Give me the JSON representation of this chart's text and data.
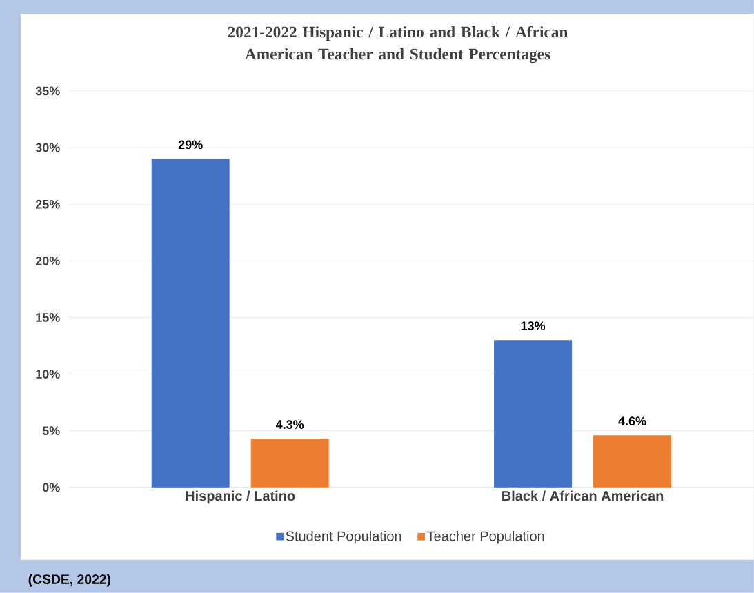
{
  "chart_data": {
    "type": "bar",
    "title": "2021-2022 Hispanic / Latino and Black / African American Teacher and Student Percentages",
    "categories": [
      "Hispanic / Latino",
      "Black / African American"
    ],
    "series": [
      {
        "name": "Student Population",
        "color": "#4472c4",
        "values": [
          29,
          13
        ],
        "value_labels": [
          "29%",
          "13%"
        ]
      },
      {
        "name": "Teacher Population",
        "color": "#ed7d31",
        "values": [
          4.3,
          4.6
        ],
        "value_labels": [
          "4.3%",
          "4.6%"
        ]
      }
    ],
    "ylim": [
      0,
      35
    ],
    "yticks": [
      {
        "value": 0,
        "label": "0%"
      },
      {
        "value": 5,
        "label": "5%"
      },
      {
        "value": 10,
        "label": "10%"
      },
      {
        "value": 15,
        "label": "15%"
      },
      {
        "value": 20,
        "label": "20%"
      },
      {
        "value": 25,
        "label": "25%"
      },
      {
        "value": 30,
        "label": "30%"
      },
      {
        "value": 35,
        "label": "35%"
      }
    ],
    "grid": "y",
    "legend": "bottom",
    "annotations": [
      "(CSDE, 2022)"
    ]
  }
}
